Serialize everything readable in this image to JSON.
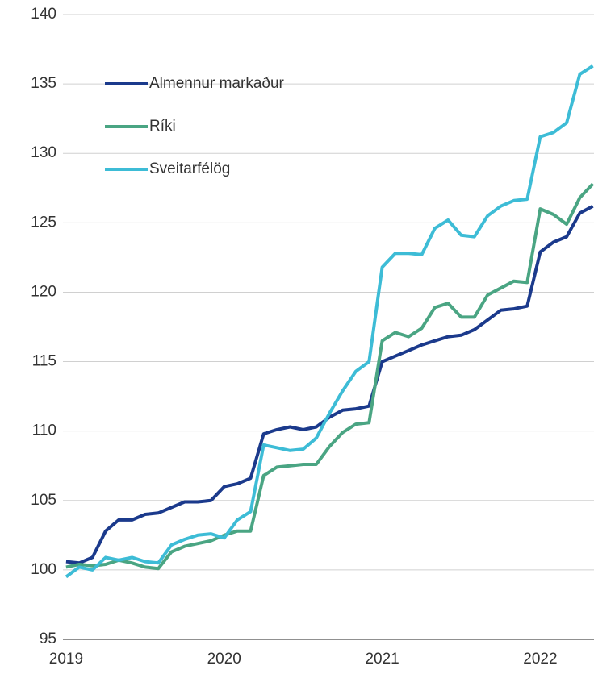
{
  "chart_data": {
    "type": "line",
    "x": [
      2019,
      2019.083,
      2019.167,
      2019.25,
      2019.333,
      2019.417,
      2019.5,
      2019.583,
      2019.667,
      2019.75,
      2019.833,
      2019.917,
      2020,
      2020.083,
      2020.167,
      2020.25,
      2020.333,
      2020.417,
      2020.5,
      2020.583,
      2020.667,
      2020.75,
      2020.833,
      2020.917,
      2021,
      2021.083,
      2021.167,
      2021.25,
      2021.333,
      2021.417,
      2021.5,
      2021.583,
      2021.667,
      2021.75,
      2021.833,
      2021.917,
      2022,
      2022.083,
      2022.167,
      2022.25,
      2022.333
    ],
    "series": [
      {
        "name": "Almennur markaður",
        "color": "#1b3a8c",
        "values": [
          100.6,
          100.5,
          100.9,
          102.8,
          103.6,
          103.6,
          104.0,
          104.1,
          104.5,
          104.9,
          104.9,
          105.0,
          106.0,
          106.2,
          106.6,
          109.8,
          110.1,
          110.3,
          110.1,
          110.3,
          111.0,
          111.5,
          111.6,
          111.8,
          115.0,
          115.4,
          115.8,
          116.2,
          116.5,
          116.8,
          116.9,
          117.3,
          118.0,
          118.7,
          118.8,
          119.0,
          122.9,
          123.6,
          124.0,
          125.7,
          126.2
        ]
      },
      {
        "name": "Ríki",
        "color": "#4aa583",
        "values": [
          100.2,
          100.4,
          100.3,
          100.4,
          100.7,
          100.5,
          100.2,
          100.1,
          101.3,
          101.7,
          101.9,
          102.1,
          102.5,
          102.8,
          102.8,
          106.8,
          107.4,
          107.5,
          107.6,
          107.6,
          108.9,
          109.9,
          110.5,
          110.6,
          116.5,
          117.1,
          116.8,
          117.4,
          118.9,
          119.2,
          118.2,
          118.2,
          119.8,
          120.3,
          120.8,
          120.7,
          126.0,
          125.6,
          124.9,
          126.8,
          127.8
        ]
      },
      {
        "name": "Sveitarfélög",
        "color": "#3dbcd6",
        "values": [
          99.5,
          100.2,
          100.0,
          100.9,
          100.7,
          100.9,
          100.6,
          100.5,
          101.8,
          102.2,
          102.5,
          102.6,
          102.3,
          103.6,
          104.2,
          109.0,
          108.8,
          108.6,
          108.7,
          109.5,
          111.3,
          112.9,
          114.3,
          115.0,
          121.8,
          122.8,
          122.8,
          122.7,
          124.6,
          125.2,
          124.1,
          124.0,
          125.5,
          126.2,
          126.6,
          126.7,
          131.2,
          131.5,
          132.2,
          135.7,
          136.3
        ]
      }
    ],
    "xlim": [
      2018.98,
      2022.34
    ],
    "xticks": [
      2019,
      2020,
      2021,
      2022
    ],
    "ylim": [
      95,
      140
    ],
    "yticks": [
      95,
      100,
      105,
      110,
      115,
      120,
      125,
      130,
      135,
      140
    ],
    "grid": true,
    "legend": "upper left"
  }
}
